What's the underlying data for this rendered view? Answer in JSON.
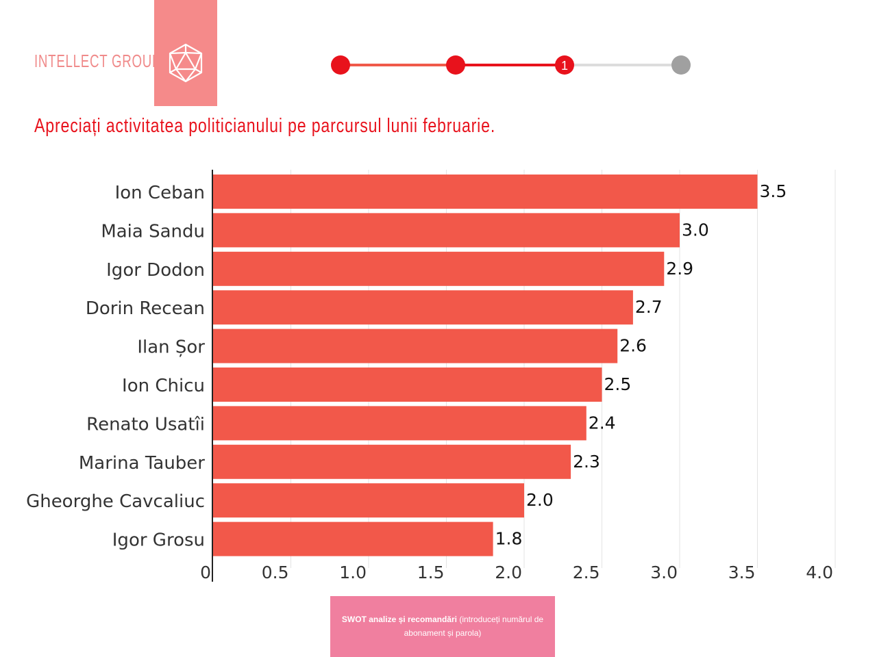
{
  "brand": {
    "name": "INTELLECT GROUP",
    "logo_icon": "icosahedron-icon",
    "color": "#f58a8a"
  },
  "progress": {
    "steps": 4,
    "current_step": 3,
    "current_label": "1",
    "active_color": "#e8121c",
    "done_color": "#f05a4a",
    "inactive_color": "#a0a0a0"
  },
  "header": {
    "question": "Apreciați activitatea politicianului pe parcursul lunii februarie."
  },
  "footer": {
    "button_bold": "SWOT analize și recomandări",
    "button_rest": " (introduceți numărul de abonament și parola)"
  },
  "chart_data": {
    "type": "bar",
    "orientation": "horizontal",
    "categories": [
      "Ion Ceban",
      "Maia Sandu",
      "Igor Dodon",
      "Dorin Recean",
      "Ilan Șor",
      "Ion Chicu",
      "Renato Usatîi",
      "Marina Tauber",
      "Gheorghe Cavcaliuc",
      "Igor Grosu"
    ],
    "values": [
      3.5,
      3.0,
      2.9,
      2.7,
      2.6,
      2.5,
      2.4,
      2.3,
      2.0,
      1.8
    ],
    "value_labels": [
      "3.5",
      "3.0",
      "2.9",
      "2.7",
      "2.6",
      "2.5",
      "2.4",
      "2.3",
      "2.0",
      "1.8"
    ],
    "xlim": [
      0,
      4.0
    ],
    "ticks": [
      0,
      0.5,
      1.0,
      1.5,
      2.0,
      2.5,
      3.0,
      3.5,
      4.0
    ],
    "tick_labels": [
      "0",
      "0.5",
      "1.0",
      "1.5",
      "2.0",
      "2.5",
      "3.0",
      "3.5",
      "4.0"
    ],
    "grid": true,
    "bar_color": "#f2584a"
  }
}
